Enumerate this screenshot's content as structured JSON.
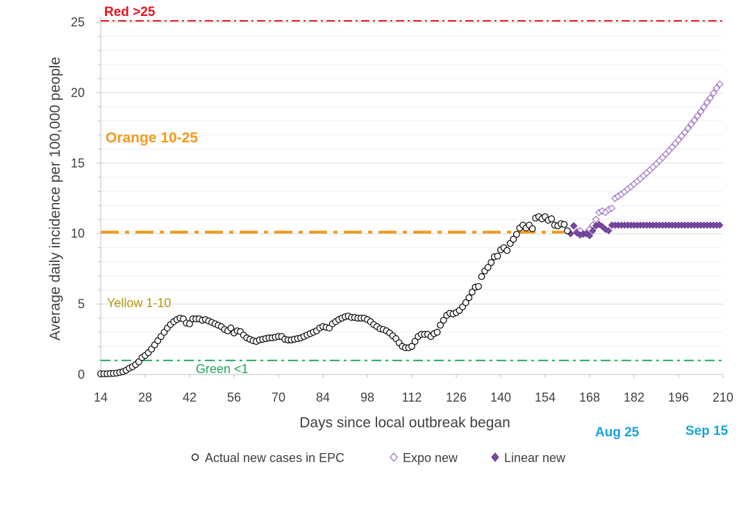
{
  "chart_data": {
    "type": "scatter",
    "xlabel": "Days since local outbreak began",
    "ylabel": "Average daily incidence per 100,000 people",
    "xlim": [
      14,
      210
    ],
    "ylim": [
      0,
      25
    ],
    "x_ticks": [
      14,
      28,
      42,
      56,
      70,
      84,
      98,
      112,
      126,
      140,
      154,
      168,
      182,
      196,
      210
    ],
    "y_ticks": [
      0,
      5,
      10,
      15,
      20,
      25
    ],
    "grid": "horizontal major and minor lines",
    "thresholds": [
      {
        "label": "Red >25",
        "value": 25.1,
        "color": "#e8141c",
        "style": "dash-dot"
      },
      {
        "label": "Orange 10-25",
        "value": 10.1,
        "color": "#f39a1e",
        "style": "thick dash-dot"
      },
      {
        "label": "Yellow 1-10",
        "value": 5.0,
        "color": "#b8960a",
        "style": "label only"
      },
      {
        "label": "Green <1",
        "value": 1.0,
        "color": "#1fa65a",
        "style": "dash-dot"
      }
    ],
    "date_annotations": [
      {
        "label": "Aug 25",
        "x": 175,
        "color": "#1aa3d9"
      },
      {
        "label": "Sep 15",
        "x": 210,
        "color": "#1aa3d9"
      }
    ],
    "series": [
      {
        "name": "Actual new cases in EPC",
        "marker": "open-circle",
        "color": "#000000",
        "points": [
          [
            14,
            0.05
          ],
          [
            15,
            0.05
          ],
          [
            16,
            0.05
          ],
          [
            17,
            0.07
          ],
          [
            18,
            0.08
          ],
          [
            19,
            0.1
          ],
          [
            20,
            0.15
          ],
          [
            21,
            0.2
          ],
          [
            22,
            0.3
          ],
          [
            23,
            0.45
          ],
          [
            24,
            0.55
          ],
          [
            25,
            0.7
          ],
          [
            26,
            0.9
          ],
          [
            27,
            1.2
          ],
          [
            28,
            1.35
          ],
          [
            29,
            1.55
          ],
          [
            30,
            1.8
          ],
          [
            31,
            2.1
          ],
          [
            32,
            2.4
          ],
          [
            33,
            2.7
          ],
          [
            34,
            3.0
          ],
          [
            35,
            3.3
          ],
          [
            36,
            3.55
          ],
          [
            37,
            3.75
          ],
          [
            38,
            3.9
          ],
          [
            39,
            4.0
          ],
          [
            40,
            3.95
          ],
          [
            41,
            3.65
          ],
          [
            42,
            3.6
          ],
          [
            43,
            3.95
          ],
          [
            44,
            3.95
          ],
          [
            45,
            3.95
          ],
          [
            46,
            3.85
          ],
          [
            47,
            3.9
          ],
          [
            48,
            3.8
          ],
          [
            49,
            3.7
          ],
          [
            50,
            3.6
          ],
          [
            51,
            3.5
          ],
          [
            52,
            3.4
          ],
          [
            53,
            3.2
          ],
          [
            54,
            3.1
          ],
          [
            55,
            3.3
          ],
          [
            56,
            2.95
          ],
          [
            57,
            3.1
          ],
          [
            58,
            3.05
          ],
          [
            59,
            2.8
          ],
          [
            60,
            2.6
          ],
          [
            61,
            2.5
          ],
          [
            62,
            2.4
          ],
          [
            63,
            2.35
          ],
          [
            64,
            2.45
          ],
          [
            65,
            2.5
          ],
          [
            66,
            2.55
          ],
          [
            67,
            2.6
          ],
          [
            68,
            2.6
          ],
          [
            69,
            2.65
          ],
          [
            70,
            2.7
          ],
          [
            71,
            2.7
          ],
          [
            72,
            2.5
          ],
          [
            73,
            2.45
          ],
          [
            74,
            2.45
          ],
          [
            75,
            2.5
          ],
          [
            76,
            2.55
          ],
          [
            77,
            2.6
          ],
          [
            78,
            2.7
          ],
          [
            79,
            2.8
          ],
          [
            80,
            2.9
          ],
          [
            81,
            3.0
          ],
          [
            82,
            3.1
          ],
          [
            83,
            3.3
          ],
          [
            84,
            3.4
          ],
          [
            85,
            3.35
          ],
          [
            86,
            3.3
          ],
          [
            87,
            3.6
          ],
          [
            88,
            3.75
          ],
          [
            89,
            3.9
          ],
          [
            90,
            4.0
          ],
          [
            91,
            4.1
          ],
          [
            92,
            4.15
          ],
          [
            93,
            4.05
          ],
          [
            94,
            4.05
          ],
          [
            95,
            4.0
          ],
          [
            96,
            4.0
          ],
          [
            97,
            4.0
          ],
          [
            98,
            3.9
          ],
          [
            99,
            3.75
          ],
          [
            100,
            3.55
          ],
          [
            101,
            3.4
          ],
          [
            102,
            3.25
          ],
          [
            103,
            3.2
          ],
          [
            104,
            3.1
          ],
          [
            105,
            2.95
          ],
          [
            106,
            2.75
          ],
          [
            107,
            2.55
          ],
          [
            108,
            2.25
          ],
          [
            109,
            2.0
          ],
          [
            110,
            1.9
          ],
          [
            111,
            1.9
          ],
          [
            112,
            2.0
          ],
          [
            113,
            2.35
          ],
          [
            114,
            2.7
          ],
          [
            115,
            2.85
          ],
          [
            116,
            2.85
          ],
          [
            117,
            2.85
          ],
          [
            118,
            2.7
          ],
          [
            119,
            2.9
          ],
          [
            120,
            3.0
          ],
          [
            121,
            3.5
          ],
          [
            122,
            3.85
          ],
          [
            123,
            4.2
          ],
          [
            124,
            4.35
          ],
          [
            125,
            4.3
          ],
          [
            126,
            4.4
          ],
          [
            127,
            4.55
          ],
          [
            128,
            4.8
          ],
          [
            129,
            5.1
          ],
          [
            130,
            5.45
          ],
          [
            131,
            5.85
          ],
          [
            132,
            6.2
          ],
          [
            133,
            6.25
          ],
          [
            134,
            6.95
          ],
          [
            135,
            7.35
          ],
          [
            136,
            7.6
          ],
          [
            137,
            7.95
          ],
          [
            138,
            8.35
          ],
          [
            139,
            8.4
          ],
          [
            140,
            8.85
          ],
          [
            141,
            9.0
          ],
          [
            142,
            8.8
          ],
          [
            143,
            9.3
          ],
          [
            144,
            9.6
          ],
          [
            145,
            9.95
          ],
          [
            146,
            10.4
          ],
          [
            147,
            10.6
          ],
          [
            148,
            10.4
          ],
          [
            149,
            10.6
          ],
          [
            150,
            10.35
          ],
          [
            151,
            11.1
          ],
          [
            152,
            11.2
          ],
          [
            153,
            11.05
          ],
          [
            154,
            11.2
          ],
          [
            155,
            10.95
          ],
          [
            156,
            11.05
          ],
          [
            157,
            10.6
          ],
          [
            158,
            10.55
          ],
          [
            159,
            10.7
          ],
          [
            160,
            10.65
          ],
          [
            161,
            10.2
          ]
        ]
      },
      {
        "name": "Expo new",
        "marker": "open-diamond",
        "color": "#a071c4",
        "points": [
          [
            162,
            10.0
          ],
          [
            163,
            10.55
          ],
          [
            164,
            10.15
          ],
          [
            165,
            10.2
          ],
          [
            166,
            10.0
          ],
          [
            167,
            10.0
          ],
          [
            168,
            10.3
          ],
          [
            169,
            10.6
          ],
          [
            170,
            11.0
          ],
          [
            171,
            11.5
          ],
          [
            172,
            11.6
          ],
          [
            173,
            11.5
          ],
          [
            174,
            11.7
          ],
          [
            175,
            11.8
          ],
          [
            176,
            12.5
          ],
          [
            177,
            12.65
          ],
          [
            178,
            12.8
          ],
          [
            179,
            12.97
          ],
          [
            180,
            13.15
          ],
          [
            181,
            13.33
          ],
          [
            182,
            13.52
          ],
          [
            183,
            13.71
          ],
          [
            184,
            13.9
          ],
          [
            185,
            14.1
          ],
          [
            186,
            14.3
          ],
          [
            187,
            14.51
          ],
          [
            188,
            14.72
          ],
          [
            189,
            14.94
          ],
          [
            190,
            15.17
          ],
          [
            191,
            15.4
          ],
          [
            192,
            15.64
          ],
          [
            193,
            15.88
          ],
          [
            194,
            16.13
          ],
          [
            195,
            16.39
          ],
          [
            196,
            16.65
          ],
          [
            197,
            16.92
          ],
          [
            198,
            17.19
          ],
          [
            199,
            17.47
          ],
          [
            200,
            17.76
          ],
          [
            201,
            18.05
          ],
          [
            202,
            18.35
          ],
          [
            203,
            18.66
          ],
          [
            204,
            18.98
          ],
          [
            205,
            19.3
          ],
          [
            206,
            19.63
          ],
          [
            207,
            19.97
          ],
          [
            208,
            20.32
          ],
          [
            209,
            20.6
          ]
        ]
      },
      {
        "name": "Linear new",
        "marker": "filled-diamond",
        "color": "#7b4aa3",
        "points": [
          [
            162,
            10.0
          ],
          [
            163,
            10.55
          ],
          [
            164,
            10.05
          ],
          [
            165,
            9.9
          ],
          [
            166,
            9.95
          ],
          [
            167,
            10.0
          ],
          [
            168,
            9.85
          ],
          [
            169,
            10.2
          ],
          [
            170,
            10.55
          ],
          [
            171,
            10.65
          ],
          [
            172,
            10.5
          ],
          [
            173,
            10.3
          ],
          [
            174,
            10.2
          ],
          [
            175,
            10.6
          ],
          [
            176,
            10.6
          ],
          [
            177,
            10.6
          ],
          [
            178,
            10.6
          ],
          [
            179,
            10.6
          ],
          [
            180,
            10.6
          ],
          [
            181,
            10.6
          ],
          [
            182,
            10.6
          ],
          [
            183,
            10.6
          ],
          [
            184,
            10.6
          ],
          [
            185,
            10.6
          ],
          [
            186,
            10.6
          ],
          [
            187,
            10.6
          ],
          [
            188,
            10.6
          ],
          [
            189,
            10.6
          ],
          [
            190,
            10.6
          ],
          [
            191,
            10.6
          ],
          [
            192,
            10.6
          ],
          [
            193,
            10.6
          ],
          [
            194,
            10.6
          ],
          [
            195,
            10.6
          ],
          [
            196,
            10.6
          ],
          [
            197,
            10.6
          ],
          [
            198,
            10.6
          ],
          [
            199,
            10.6
          ],
          [
            200,
            10.6
          ],
          [
            201,
            10.6
          ],
          [
            202,
            10.6
          ],
          [
            203,
            10.6
          ],
          [
            204,
            10.6
          ],
          [
            205,
            10.6
          ],
          [
            206,
            10.6
          ],
          [
            207,
            10.6
          ],
          [
            208,
            10.6
          ],
          [
            209,
            10.6
          ]
        ]
      }
    ],
    "legend": {
      "placement": "bottom-center"
    }
  }
}
